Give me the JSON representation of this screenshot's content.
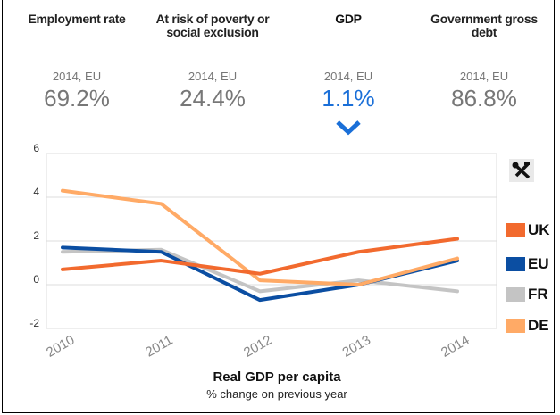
{
  "tabs": [
    {
      "title": "Employment rate",
      "sub": "2014, EU",
      "value": "69.2%"
    },
    {
      "title": "At risk of poverty or social exclusion",
      "sub": "2014, EU",
      "value": "24.4%"
    },
    {
      "title": "GDP",
      "sub": "2014, EU",
      "value": "1.1%"
    },
    {
      "title": "Government gross debt",
      "sub": "2014, EU",
      "value": "86.8%"
    }
  ],
  "active_tab": "GDP",
  "tools_icon": "tools-icon",
  "selected_icon": "chevron-down-icon",
  "colors": {
    "UK": "#f26a2e",
    "EU": "#0b4ea2",
    "FR": "#c4c4c4",
    "DE": "#ffaa66",
    "accent": "#1a6fd8"
  },
  "chart_data": {
    "type": "line",
    "title": "Real GDP per capita",
    "subtitle": "% change on previous year",
    "x": [
      "2010",
      "2011",
      "2012",
      "2013",
      "2014"
    ],
    "ylim": [
      -2,
      6
    ],
    "yticks": [
      "-2",
      "0",
      "2",
      "4",
      "6"
    ],
    "grid": true,
    "legend_placement": "right",
    "series": [
      {
        "name": "UK",
        "values": [
          0.7,
          1.1,
          0.5,
          1.5,
          2.1
        ]
      },
      {
        "name": "EU",
        "values": [
          1.7,
          1.5,
          -0.7,
          0.0,
          1.1
        ]
      },
      {
        "name": "FR",
        "values": [
          1.5,
          1.6,
          -0.3,
          0.2,
          -0.3
        ]
      },
      {
        "name": "DE",
        "values": [
          4.3,
          3.7,
          0.2,
          0.0,
          1.2
        ]
      }
    ]
  }
}
